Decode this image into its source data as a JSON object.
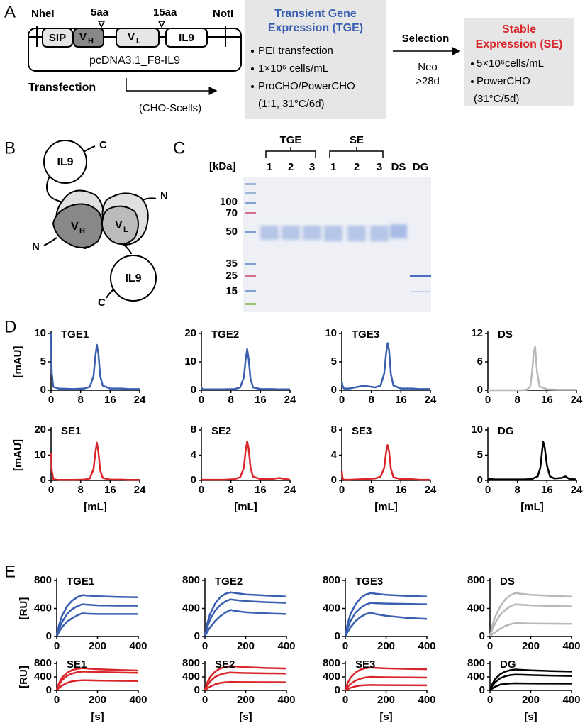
{
  "panel_a": {
    "letter": "A",
    "nhei": "NheI",
    "linker_5": "5aa",
    "linker_15": "15aa",
    "noti": "NotI",
    "sip": "SIP",
    "vh": {
      "main": "V",
      "sub": "H"
    },
    "vl": {
      "main": "V",
      "sub": "L"
    },
    "il9": "IL9",
    "plasmid": "pcDNA3.1_F8-IL9",
    "transfection": "Transfection",
    "cells": "(CHO-Scells)",
    "tge_box": {
      "title": [
        "Transient Gene",
        "Expression (TGE)"
      ],
      "items": [
        "PEI transfection",
        "1×10⁶ cells/mL",
        "ProCHO/PowerCHO"
      ],
      "note": "(1:1, 31°C/6d)"
    },
    "selection": {
      "label": "Selection",
      "agent": "Neo",
      "duration": ">28d"
    },
    "se_box": {
      "title": [
        "Stable",
        "Expression (SE)"
      ],
      "items": [
        "5×10⁶cells/mL",
        "PowerCHO"
      ],
      "note": "(31°C/5d)"
    }
  },
  "panel_b": {
    "letter": "B",
    "il9_top": "IL9",
    "c_top": "C",
    "n_right": "N",
    "vh": {
      "main": "V",
      "sub": "H"
    },
    "vl": {
      "main": "V",
      "sub": "L"
    },
    "n_left": "N",
    "il9_bottom": "IL9",
    "c_bottom": "C"
  },
  "panel_c": {
    "letter": "C",
    "unit": "[kDa]",
    "groups": [
      "TGE",
      "SE"
    ],
    "lanes": [
      "1",
      "2",
      "3",
      "1",
      "2",
      "3",
      "DS",
      "DG"
    ],
    "markers": [
      "100",
      "70",
      "50",
      "35",
      "25",
      "15"
    ]
  },
  "panel_d": {
    "letter": "D"
  },
  "panel_e": {
    "letter": "E"
  },
  "chart_data": [
    {
      "type": "line",
      "title": "TGE1",
      "ylabel": "[mAU]",
      "x": [
        0,
        0.2,
        0.6,
        2,
        6,
        9,
        10.5,
        11.5,
        12,
        12.4,
        12.8,
        13.3,
        14,
        16,
        19,
        21,
        24
      ],
      "xlim": [
        0,
        24
      ],
      "xticks": [
        0,
        8,
        16,
        24
      ],
      "ylim": [
        0,
        10
      ],
      "yticks": [
        0,
        5,
        10
      ],
      "series": [
        {
          "color": "#3a5fb0",
          "values": [
            10,
            3,
            0.6,
            0.3,
            0.2,
            0.3,
            0.6,
            2.5,
            6,
            8,
            6.5,
            2.5,
            0.8,
            0.3,
            0.3,
            0.2,
            0.2
          ]
        }
      ]
    },
    {
      "type": "line",
      "title": "TGE2",
      "x": [
        0,
        0.2,
        0.6,
        2,
        6,
        9,
        10.5,
        11.5,
        12,
        12.4,
        12.8,
        13.3,
        14,
        16,
        19,
        21,
        24
      ],
      "xlim": [
        0,
        24
      ],
      "xticks": [
        0,
        8,
        16,
        24
      ],
      "ylim": [
        0,
        20
      ],
      "yticks": [
        0,
        10,
        20
      ],
      "series": [
        {
          "color": "#3a5fb0",
          "values": [
            1,
            0.5,
            0.3,
            0.3,
            0.3,
            0.4,
            1,
            4.5,
            11,
            14.5,
            11,
            4,
            1,
            0.4,
            0.4,
            0.3,
            0.3
          ]
        }
      ]
    },
    {
      "type": "line",
      "title": "TGE3",
      "x": [
        0,
        0.2,
        0.6,
        2,
        6,
        9,
        10.5,
        11.5,
        12,
        12.4,
        12.8,
        13.3,
        14,
        16,
        19,
        21,
        24
      ],
      "xlim": [
        0,
        24
      ],
      "xticks": [
        0,
        8,
        16,
        24
      ],
      "ylim": [
        0,
        10
      ],
      "yticks": [
        0,
        5,
        10
      ],
      "series": [
        {
          "color": "#3a5fb0",
          "values": [
            1.5,
            0.8,
            0.3,
            0.3,
            0.8,
            0.5,
            0.8,
            3,
            6.5,
            8.3,
            7,
            2.8,
            0.8,
            0.3,
            0.3,
            0.2,
            0.2
          ]
        }
      ]
    },
    {
      "type": "line",
      "title": "DS",
      "x": [
        0,
        0.2,
        0.6,
        2,
        6,
        9,
        10.5,
        11.5,
        12,
        12.4,
        12.8,
        13.3,
        14,
        16,
        19,
        21,
        24
      ],
      "xlim": [
        0,
        24
      ],
      "xticks": [
        0,
        8,
        16,
        24
      ],
      "ylim": [
        0,
        12
      ],
      "yticks": [
        0,
        6,
        12
      ],
      "series": [
        {
          "color": "#b8b8b8",
          "values": [
            0,
            0,
            0,
            0,
            0,
            0,
            0.1,
            0.8,
            4,
            8,
            9.2,
            4,
            0.8,
            0.2,
            0.1,
            0.1,
            0.1
          ]
        }
      ]
    },
    {
      "type": "line",
      "title": "SE1",
      "ylabel": "[mAU]",
      "xlabel": "[mL]",
      "x": [
        0,
        0.2,
        0.6,
        2,
        6,
        9,
        10.5,
        11.5,
        12,
        12.4,
        12.8,
        13.3,
        14,
        16,
        19,
        21,
        24
      ],
      "xlim": [
        0,
        24
      ],
      "xticks": [
        0,
        8,
        16,
        24
      ],
      "ylim": [
        0,
        20
      ],
      "yticks": [
        0,
        10,
        20
      ],
      "series": [
        {
          "color": "#d8262b",
          "values": [
            11,
            4,
            0.5,
            0.2,
            0.2,
            0.3,
            0.8,
            4.5,
            11,
            15,
            11.5,
            4,
            1,
            0.3,
            0.3,
            0.2,
            0.2
          ]
        }
      ]
    },
    {
      "type": "line",
      "title": "SE2",
      "xlabel": "[mL]",
      "x": [
        0,
        0.2,
        0.6,
        2,
        6,
        9,
        10.5,
        11.5,
        12,
        12.4,
        12.8,
        13.3,
        14,
        16,
        19,
        21,
        24
      ],
      "xlim": [
        0,
        24
      ],
      "xticks": [
        0,
        8,
        16,
        24
      ],
      "ylim": [
        0,
        8
      ],
      "yticks": [
        0,
        4,
        8
      ],
      "series": [
        {
          "color": "#d8262b",
          "values": [
            0.2,
            0.1,
            0.1,
            0.1,
            0.1,
            0.2,
            0.5,
            2,
            4.8,
            6.2,
            5,
            2,
            0.6,
            0.2,
            0.2,
            0.4,
            0.1
          ]
        }
      ]
    },
    {
      "type": "line",
      "title": "SE3",
      "xlabel": "[mL]",
      "x": [
        0,
        0.2,
        0.6,
        2,
        6,
        9,
        10.5,
        11.5,
        12,
        12.4,
        12.8,
        13.3,
        14,
        16,
        19,
        21,
        24
      ],
      "xlim": [
        0,
        24
      ],
      "xticks": [
        0,
        8,
        16,
        24
      ],
      "ylim": [
        0,
        8
      ],
      "yticks": [
        0,
        4,
        8
      ],
      "series": [
        {
          "color": "#d8262b",
          "values": [
            1.5,
            0.4,
            0.1,
            0.1,
            0.2,
            0.3,
            0.6,
            2,
            4.5,
            5.6,
            4.6,
            1.8,
            0.5,
            0.2,
            0.2,
            0.1,
            0.1
          ]
        }
      ]
    },
    {
      "type": "line",
      "title": "DG",
      "xlabel": "[mL]",
      "x": [
        0,
        2,
        6,
        10,
        12,
        13.5,
        14.2,
        14.7,
        15,
        15.4,
        16,
        16.8,
        18,
        20,
        21,
        22,
        24
      ],
      "xlim": [
        0,
        24
      ],
      "xticks": [
        0,
        8,
        16,
        24
      ],
      "ylim": [
        0,
        10
      ],
      "yticks": [
        0,
        5,
        10
      ],
      "series": [
        {
          "color": "#000000",
          "values": [
            0.3,
            0.2,
            0.2,
            0.2,
            0.3,
            0.8,
            2.5,
            6,
            7.6,
            6.5,
            3,
            0.8,
            0.4,
            0.5,
            0.8,
            0.3,
            0.2
          ]
        }
      ]
    },
    {
      "type": "line",
      "title": "TGE1",
      "ylabel": "[RU]",
      "x": [
        0,
        10,
        25,
        50,
        75,
        100,
        125,
        150,
        200,
        300,
        400
      ],
      "xlim": [
        0,
        400
      ],
      "xticks": [
        0,
        200,
        400
      ],
      "ylim": [
        0,
        800
      ],
      "yticks": [
        0,
        400,
        800
      ],
      "series": [
        {
          "color": "#3a5fb0",
          "values": [
            0,
            150,
            290,
            430,
            510,
            560,
            590,
            585,
            575,
            565,
            560
          ]
        },
        {
          "color": "#3a5fb0",
          "values": [
            0,
            100,
            200,
            320,
            390,
            430,
            460,
            455,
            445,
            440,
            440
          ]
        },
        {
          "color": "#3a5fb0",
          "values": [
            0,
            60,
            130,
            210,
            260,
            300,
            330,
            325,
            320,
            320,
            320
          ]
        }
      ]
    },
    {
      "type": "line",
      "title": "TGE2",
      "x": [
        0,
        10,
        25,
        50,
        75,
        100,
        125,
        150,
        200,
        300,
        400
      ],
      "xlim": [
        0,
        400
      ],
      "xticks": [
        0,
        200,
        400
      ],
      "ylim": [
        0,
        800
      ],
      "yticks": [
        0,
        400,
        800
      ],
      "series": [
        {
          "color": "#3a5fb0",
          "values": [
            0,
            170,
            320,
            470,
            560,
            610,
            630,
            620,
            600,
            585,
            570
          ]
        },
        {
          "color": "#3a5fb0",
          "values": [
            0,
            120,
            240,
            370,
            450,
            500,
            530,
            520,
            505,
            490,
            480
          ]
        },
        {
          "color": "#3a5fb0",
          "values": [
            0,
            60,
            130,
            220,
            290,
            340,
            380,
            365,
            345,
            330,
            320
          ]
        }
      ]
    },
    {
      "type": "line",
      "title": "TGE3",
      "x": [
        0,
        10,
        25,
        50,
        75,
        100,
        125,
        150,
        200,
        300,
        400
      ],
      "xlim": [
        0,
        400
      ],
      "xticks": [
        0,
        200,
        400
      ],
      "ylim": [
        0,
        800
      ],
      "yticks": [
        0,
        400,
        800
      ],
      "series": [
        {
          "color": "#3a5fb0",
          "values": [
            0,
            170,
            320,
            460,
            550,
            600,
            620,
            610,
            595,
            580,
            570
          ]
        },
        {
          "color": "#3a5fb0",
          "values": [
            0,
            110,
            220,
            340,
            410,
            455,
            480,
            475,
            470,
            465,
            460
          ]
        },
        {
          "color": "#3a5fb0",
          "values": [
            0,
            60,
            130,
            220,
            280,
            320,
            340,
            320,
            295,
            265,
            250
          ]
        }
      ]
    },
    {
      "type": "line",
      "title": "DS",
      "x": [
        0,
        10,
        25,
        50,
        75,
        100,
        125,
        150,
        200,
        300,
        400
      ],
      "xlim": [
        0,
        400
      ],
      "xticks": [
        0,
        200,
        400
      ],
      "ylim": [
        0,
        800
      ],
      "yticks": [
        0,
        400,
        800
      ],
      "series": [
        {
          "color": "#b8b8b8",
          "values": [
            0,
            140,
            280,
            430,
            530,
            590,
            620,
            610,
            595,
            580,
            570
          ]
        },
        {
          "color": "#b8b8b8",
          "values": [
            0,
            90,
            190,
            310,
            380,
            430,
            460,
            455,
            445,
            435,
            430
          ]
        },
        {
          "color": "#b8b8b8",
          "values": [
            0,
            30,
            60,
            110,
            150,
            175,
            190,
            188,
            185,
            182,
            180
          ]
        }
      ]
    },
    {
      "type": "line",
      "title": "SE1",
      "ylabel": "[RU]",
      "xlabel": "[s]",
      "x": [
        0,
        10,
        25,
        50,
        75,
        100,
        125,
        150,
        200,
        300,
        400
      ],
      "xlim": [
        0,
        400
      ],
      "xticks": [
        0,
        200,
        400
      ],
      "ylim": [
        0,
        800
      ],
      "yticks": [
        0,
        400,
        800
      ],
      "series": [
        {
          "color": "#d8262b",
          "values": [
            0,
            200,
            370,
            520,
            600,
            640,
            660,
            650,
            630,
            605,
            590
          ]
        },
        {
          "color": "#d8262b",
          "values": [
            0,
            150,
            300,
            430,
            500,
            540,
            560,
            555,
            545,
            530,
            520
          ]
        },
        {
          "color": "#d8262b",
          "values": [
            0,
            70,
            140,
            220,
            270,
            290,
            300,
            298,
            292,
            285,
            280
          ]
        }
      ]
    },
    {
      "type": "line",
      "title": "SE2",
      "xlabel": "[s]",
      "x": [
        0,
        10,
        25,
        50,
        75,
        100,
        125,
        150,
        200,
        300,
        400
      ],
      "xlim": [
        0,
        400
      ],
      "xticks": [
        0,
        200,
        400
      ],
      "ylim": [
        0,
        800
      ],
      "yticks": [
        0,
        400,
        800
      ],
      "series": [
        {
          "color": "#d8262b",
          "values": [
            0,
            210,
            390,
            560,
            650,
            700,
            720,
            710,
            690,
            665,
            650
          ]
        },
        {
          "color": "#d8262b",
          "values": [
            0,
            130,
            260,
            400,
            470,
            510,
            530,
            525,
            515,
            505,
            500
          ]
        },
        {
          "color": "#d8262b",
          "values": [
            0,
            50,
            110,
            180,
            220,
            240,
            250,
            248,
            245,
            242,
            240
          ]
        }
      ]
    },
    {
      "type": "line",
      "title": "SE3",
      "xlabel": "[s]",
      "x": [
        0,
        10,
        25,
        50,
        75,
        100,
        125,
        150,
        200,
        300,
        400
      ],
      "xlim": [
        0,
        400
      ],
      "xticks": [
        0,
        200,
        400
      ],
      "ylim": [
        0,
        800
      ],
      "yticks": [
        0,
        400,
        800
      ],
      "series": [
        {
          "color": "#d8262b",
          "values": [
            0,
            200,
            370,
            530,
            620,
            660,
            680,
            670,
            655,
            640,
            630
          ]
        },
        {
          "color": "#d8262b",
          "values": [
            0,
            90,
            190,
            290,
            350,
            385,
            400,
            395,
            390,
            385,
            380
          ]
        },
        {
          "color": "#d8262b",
          "values": [
            0,
            35,
            75,
            120,
            145,
            155,
            160,
            158,
            155,
            152,
            150
          ]
        }
      ]
    },
    {
      "type": "line",
      "title": "DG",
      "xlabel": "[s]",
      "x": [
        0,
        10,
        25,
        50,
        75,
        100,
        125,
        150,
        200,
        300,
        400
      ],
      "xlim": [
        0,
        400
      ],
      "xticks": [
        0,
        200,
        400
      ],
      "ylim": [
        0,
        800
      ],
      "yticks": [
        0,
        400,
        800
      ],
      "series": [
        {
          "color": "#000000",
          "values": [
            0,
            170,
            330,
            480,
            560,
            600,
            620,
            610,
            595,
            575,
            560
          ]
        },
        {
          "color": "#000000",
          "values": [
            0,
            120,
            240,
            360,
            420,
            455,
            470,
            465,
            455,
            440,
            430
          ]
        },
        {
          "color": "#000000",
          "values": [
            0,
            50,
            110,
            170,
            195,
            205,
            210,
            208,
            205,
            202,
            200
          ]
        }
      ]
    }
  ]
}
